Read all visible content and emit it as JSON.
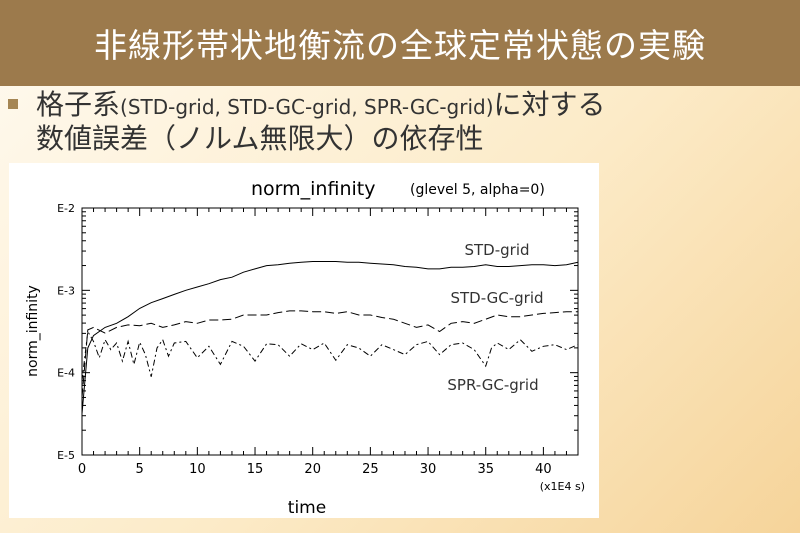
{
  "slide": {
    "title": "非線形帯状地衡流の全球定常状態の実験",
    "bullet_prefix": "格子系",
    "bullet_paren": "(STD-grid, STD-GC-grid, SPR-GC-grid)",
    "bullet_suffix": "に対する",
    "bullet_line2": "数値誤差（ノルム無限大）の依存性"
  },
  "colors": {
    "title_bar": "#9c7a4c",
    "bullet": "#a58654",
    "background_light": "#fffaf0",
    "background_warm": "#f6d49a"
  },
  "chart_data": {
    "type": "line",
    "title": "norm_infinity",
    "subtitle": "(glevel 5, alpha=0)",
    "xlabel": "time",
    "xunit": "(x1E4 s)",
    "ylabel": "norm_infinity",
    "log_y": true,
    "xlim": [
      0,
      43
    ],
    "ylim_exponent": [
      -5,
      -2
    ],
    "xticks": [
      0,
      5,
      10,
      15,
      20,
      25,
      30,
      35,
      40
    ],
    "xtick_labels": [
      "0",
      "5",
      "10",
      "15",
      "20",
      "25",
      "30",
      "35",
      "40"
    ],
    "yticks_exponent": [
      -2,
      -3,
      -4,
      -5
    ],
    "ytick_labels": [
      "E-2",
      "E-3",
      "E-4",
      "E-5"
    ],
    "grid": false,
    "series": [
      {
        "name": "STD-grid",
        "style": "solid",
        "x": [
          0,
          0.5,
          1,
          2,
          3,
          4,
          5,
          6,
          7,
          8,
          9,
          10,
          11,
          12,
          13,
          14,
          15,
          16,
          17,
          18,
          19,
          20,
          21,
          22,
          23,
          24,
          25,
          26,
          27,
          28,
          29,
          30,
          31,
          32,
          33,
          34,
          35,
          36,
          37,
          38,
          39,
          40,
          41,
          42,
          43
        ],
        "log10_y": [
          -4.5,
          -3.7,
          -3.55,
          -3.45,
          -3.4,
          -3.32,
          -3.22,
          -3.15,
          -3.1,
          -3.05,
          -3.0,
          -2.96,
          -2.92,
          -2.87,
          -2.84,
          -2.78,
          -2.74,
          -2.7,
          -2.69,
          -2.67,
          -2.66,
          -2.65,
          -2.65,
          -2.65,
          -2.66,
          -2.66,
          -2.67,
          -2.68,
          -2.69,
          -2.71,
          -2.72,
          -2.74,
          -2.74,
          -2.72,
          -2.72,
          -2.71,
          -2.69,
          -2.71,
          -2.71,
          -2.7,
          -2.69,
          -2.69,
          -2.7,
          -2.69,
          -2.66
        ]
      },
      {
        "name": "STD-GC-grid",
        "style": "dashed",
        "x": [
          0,
          0.5,
          1,
          2,
          3,
          4,
          5,
          6,
          7,
          8,
          9,
          10,
          11,
          12,
          13,
          14,
          15,
          16,
          17,
          18,
          19,
          20,
          21,
          22,
          23,
          24,
          25,
          26,
          27,
          28,
          29,
          30,
          31,
          32,
          33,
          34,
          35,
          36,
          37,
          38,
          39,
          40,
          41,
          42,
          43
        ],
        "log10_y": [
          -4.3,
          -3.48,
          -3.45,
          -3.52,
          -3.45,
          -3.42,
          -3.43,
          -3.4,
          -3.45,
          -3.42,
          -3.38,
          -3.4,
          -3.36,
          -3.36,
          -3.35,
          -3.3,
          -3.3,
          -3.3,
          -3.27,
          -3.25,
          -3.25,
          -3.26,
          -3.26,
          -3.28,
          -3.26,
          -3.3,
          -3.3,
          -3.33,
          -3.35,
          -3.4,
          -3.45,
          -3.42,
          -3.5,
          -3.4,
          -3.38,
          -3.4,
          -3.35,
          -3.3,
          -3.32,
          -3.32,
          -3.3,
          -3.28,
          -3.27,
          -3.26,
          -3.26
        ]
      },
      {
        "name": "SPR-GC-grid",
        "style": "dash-dot",
        "x": [
          0,
          0.5,
          1,
          1.5,
          2,
          2.5,
          3,
          3.5,
          4,
          4.5,
          5,
          5.5,
          6,
          6.5,
          7,
          7.5,
          8,
          9,
          10,
          11,
          12,
          13,
          14,
          15,
          16,
          17,
          18,
          19,
          20,
          21,
          22,
          23,
          24,
          25,
          26,
          27,
          28,
          29,
          30,
          31,
          32,
          33,
          34,
          35,
          35.5,
          36,
          37,
          38,
          39,
          40,
          41,
          42,
          43
        ],
        "log10_y": [
          -4.1,
          -3.5,
          -3.62,
          -3.82,
          -3.6,
          -3.72,
          -3.64,
          -3.86,
          -3.62,
          -3.9,
          -3.63,
          -3.78,
          -4.05,
          -3.7,
          -3.6,
          -3.8,
          -3.64,
          -3.62,
          -3.82,
          -3.68,
          -3.9,
          -3.62,
          -3.68,
          -3.86,
          -3.65,
          -3.66,
          -3.8,
          -3.65,
          -3.72,
          -3.64,
          -3.85,
          -3.66,
          -3.7,
          -3.8,
          -3.66,
          -3.72,
          -3.78,
          -3.66,
          -3.62,
          -3.78,
          -3.66,
          -3.64,
          -3.72,
          -3.92,
          -3.7,
          -3.64,
          -3.72,
          -3.6,
          -3.74,
          -3.68,
          -3.66,
          -3.72,
          -3.66
        ]
      }
    ]
  }
}
